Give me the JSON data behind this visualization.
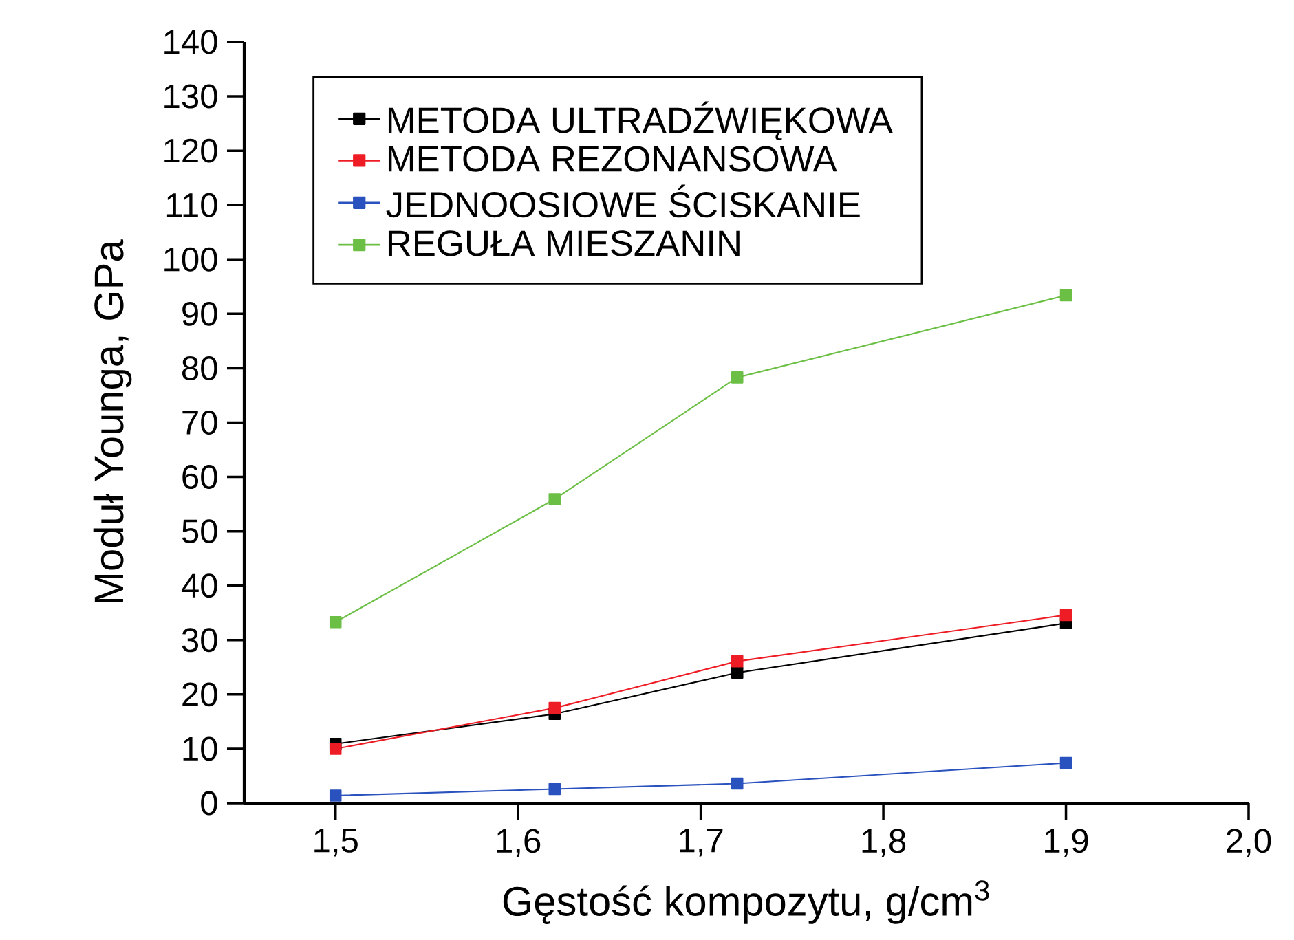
{
  "chart_data": {
    "type": "line",
    "xlabel": "Gęstość kompozytu, g/cm$^{3}$",
    "ylabel": "Moduł Younga, GPa",
    "x": [
      1.5,
      1.62,
      1.72,
      1.9
    ],
    "series": [
      {
        "name": "METODA ULTRADŹWIĘKOWA",
        "color": "#000000",
        "values": [
          10.9,
          16.4,
          24.0,
          33.1
        ]
      },
      {
        "name": "METODA REZONANSOWA",
        "color": "#ee1c25",
        "values": [
          10.0,
          17.5,
          26.1,
          34.6
        ]
      },
      {
        "name": "JEDNOOSIOWE ŚCISKANIE",
        "color": "#2a52be",
        "values": [
          1.4,
          2.6,
          3.6,
          7.4
        ]
      },
      {
        "name": "REGUŁA MIESZANIN",
        "color": "#6cbf45",
        "values": [
          33.3,
          55.9,
          78.3,
          93.4
        ]
      }
    ],
    "xlim": [
      1.45,
      2.0
    ],
    "ylim": [
      0,
      140
    ],
    "xticks": [
      {
        "value": 1.5,
        "label": "1,5"
      },
      {
        "value": 1.6,
        "label": "1,6"
      },
      {
        "value": 1.7,
        "label": "1,7"
      },
      {
        "value": 1.8,
        "label": "1,8"
      },
      {
        "value": 1.9,
        "label": "1,9"
      },
      {
        "value": 2.0,
        "label": "2,0"
      }
    ],
    "yticks": [
      0,
      10,
      20,
      30,
      40,
      50,
      60,
      70,
      80,
      90,
      100,
      110,
      120,
      130,
      140
    ],
    "legend": "top left",
    "marker": "square",
    "line_style": "solid",
    "grid": false
  }
}
